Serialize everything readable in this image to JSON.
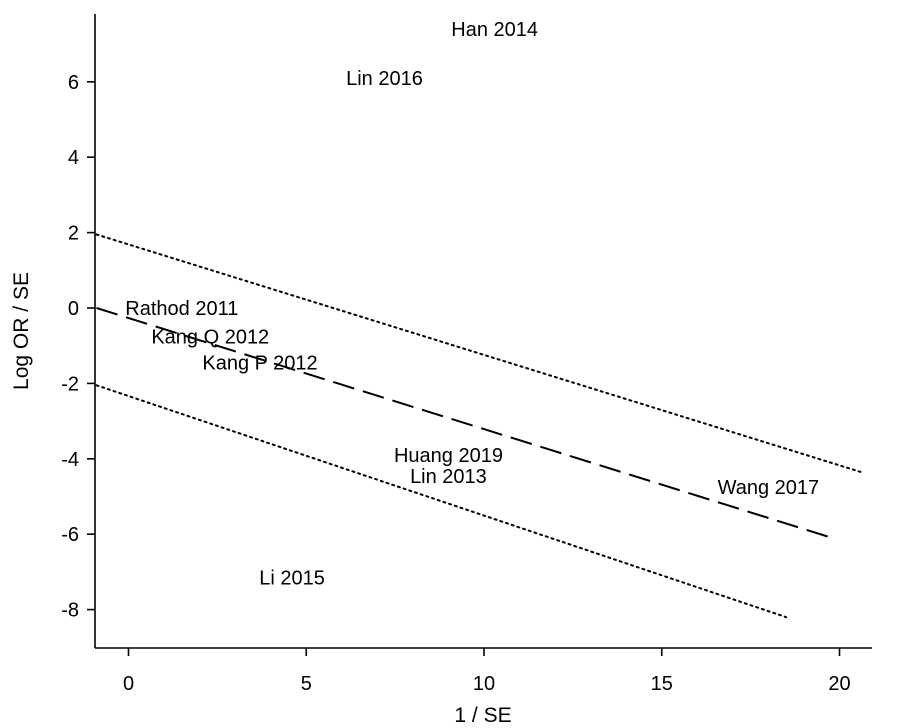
{
  "chart_data": {
    "type": "scatter",
    "title": "",
    "xlabel": "1 / SE",
    "ylabel": "Log OR / SE",
    "xlim": [
      -1,
      21
    ],
    "ylim": [
      -9,
      8
    ],
    "xticks": [
      0,
      5,
      10,
      15,
      20
    ],
    "yticks": [
      -8,
      -6,
      -4,
      -2,
      0,
      2,
      4,
      6
    ],
    "grid": false,
    "points": [
      {
        "label": "Han 2014",
        "x": 10.3,
        "y": 7.4
      },
      {
        "label": "Lin 2016",
        "x": 7.2,
        "y": 6.1
      },
      {
        "label": "Rathod 2011",
        "x": 1.5,
        "y": 0.0
      },
      {
        "label": "Kang Q 2012",
        "x": 2.3,
        "y": -0.75
      },
      {
        "label": "Kang P 2012",
        "x": 3.7,
        "y": -1.45
      },
      {
        "label": "Huang 2019",
        "x": 9.0,
        "y": -3.9
      },
      {
        "label": "Lin 2013",
        "x": 9.0,
        "y": -4.45
      },
      {
        "label": "Wang 2017",
        "x": 18.0,
        "y": -4.75
      },
      {
        "label": "Li 2015",
        "x": 4.6,
        "y": -7.15
      }
    ],
    "lines": [
      {
        "style": "dashed",
        "x": [
          -0.9,
          19.8
        ],
        "y": [
          0.0,
          -6.1
        ]
      },
      {
        "style": "dotted",
        "x": [
          -0.9,
          20.6
        ],
        "y": [
          1.95,
          -4.35
        ]
      },
      {
        "style": "dotted",
        "x": [
          -0.9,
          18.5
        ],
        "y": [
          -2.05,
          -8.2
        ]
      }
    ]
  }
}
